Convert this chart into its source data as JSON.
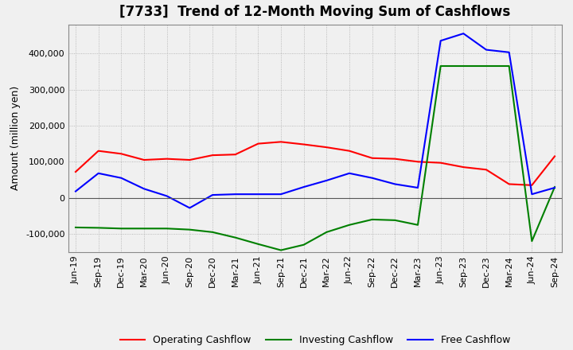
{
  "title": "[7733]  Trend of 12-Month Moving Sum of Cashflows",
  "ylabel": "Amount (million yen)",
  "ylim": [
    -150000,
    480000
  ],
  "yticks": [
    -100000,
    0,
    100000,
    200000,
    300000,
    400000
  ],
  "x_labels": [
    "Jun-19",
    "Sep-19",
    "Dec-19",
    "Mar-20",
    "Jun-20",
    "Sep-20",
    "Dec-20",
    "Mar-21",
    "Jun-21",
    "Sep-21",
    "Dec-21",
    "Mar-22",
    "Jun-22",
    "Sep-22",
    "Dec-22",
    "Mar-23",
    "Jun-23",
    "Sep-23",
    "Dec-23",
    "Mar-24",
    "Jun-24",
    "Sep-24"
  ],
  "operating_cashflow": [
    72000,
    130000,
    122000,
    105000,
    108000,
    105000,
    118000,
    120000,
    150000,
    155000,
    148000,
    140000,
    130000,
    110000,
    108000,
    100000,
    97000,
    85000,
    78000,
    38000,
    35000,
    115000
  ],
  "investing_cashflow": [
    -82000,
    -83000,
    -85000,
    -85000,
    -85000,
    -88000,
    -95000,
    -110000,
    -128000,
    -145000,
    -130000,
    -95000,
    -75000,
    -60000,
    -62000,
    -75000,
    365000,
    365000,
    365000,
    365000,
    -120000,
    30000
  ],
  "free_cashflow": [
    18000,
    68000,
    55000,
    25000,
    5000,
    -28000,
    8000,
    10000,
    10000,
    10000,
    30000,
    48000,
    68000,
    55000,
    38000,
    28000,
    435000,
    455000,
    410000,
    403000,
    10000,
    28000
  ],
  "operating_color": "#ff0000",
  "investing_color": "#008000",
  "free_color": "#0000ff",
  "bg_color": "#f0f0f0",
  "plot_bg_color": "#f0f0f0",
  "grid_color": "#aaaaaa",
  "title_fontsize": 12,
  "legend_fontsize": 9,
  "tick_fontsize": 8
}
